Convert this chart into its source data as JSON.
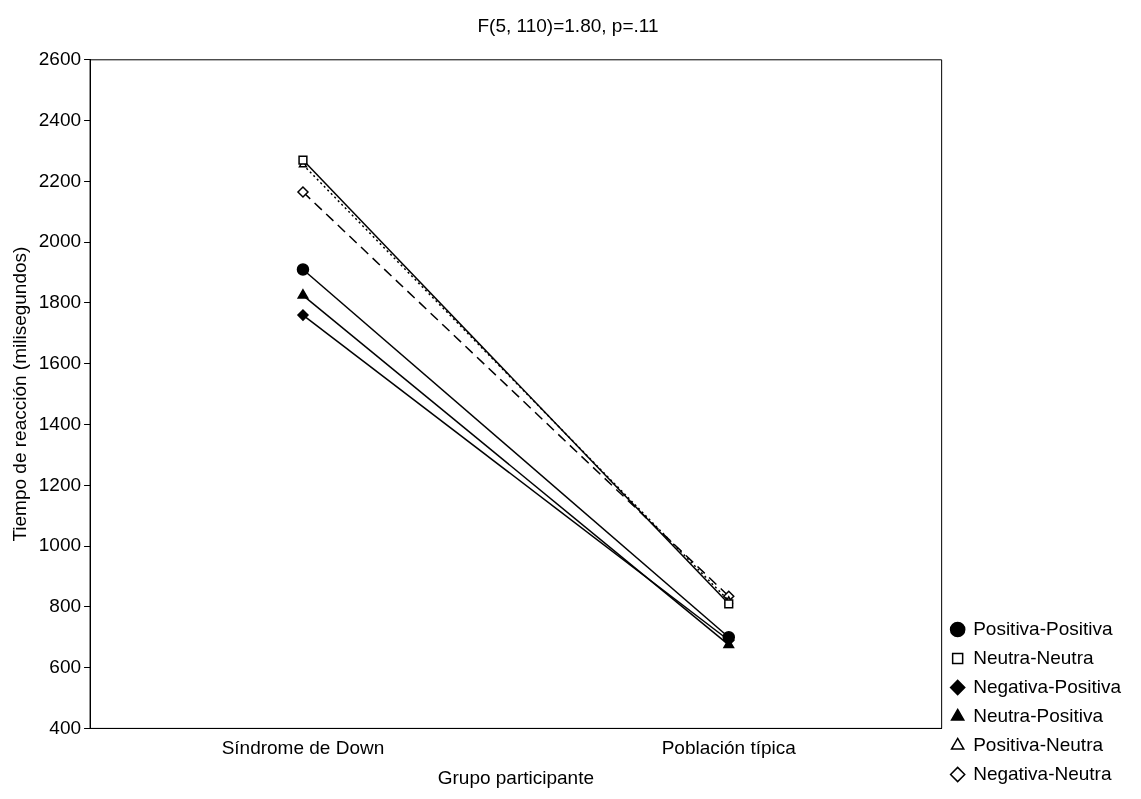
{
  "chart_data": {
    "type": "line",
    "title": "F(5, 110)=1.80, p=.11",
    "xlabel": "Grupo participante",
    "ylabel": "Tiempo de reacción (milisegundos)",
    "categories": [
      "Síndrome de Down",
      "Población típica"
    ],
    "ylim": [
      400,
      2600
    ],
    "yticks": [
      400,
      600,
      800,
      1000,
      1200,
      1400,
      1600,
      1800,
      2000,
      2200,
      2400,
      2600
    ],
    "grid": false,
    "legend": "bottom right",
    "series": [
      {
        "name": "Positiva-Positiva",
        "color": "#000000",
        "values": [
          1910,
          700
        ],
        "marker": "circle",
        "line_style": "solid"
      },
      {
        "name": "Neutra-Neutra",
        "color": "#000000",
        "values": [
          2270,
          810
        ],
        "marker": "square",
        "line_style": "solid"
      },
      {
        "name": "Negativa-Positiva",
        "color": "#000000",
        "values": [
          1760,
          690
        ],
        "marker": "diamond",
        "line_style": "solid"
      },
      {
        "name": "Neutra-Positiva",
        "color": "#000000",
        "values": [
          1825,
          675
        ],
        "marker": "triangle",
        "line_style": "solid"
      },
      {
        "name": "Positiva-Neutra",
        "color": "#000000",
        "values": [
          2255,
          820
        ],
        "marker": "triangle",
        "line_style": "dotted"
      },
      {
        "name": "Negativa-Neutra",
        "color": "#000000",
        "values": [
          2165,
          835
        ],
        "marker": "diamond",
        "line_style": "dashed"
      }
    ]
  }
}
